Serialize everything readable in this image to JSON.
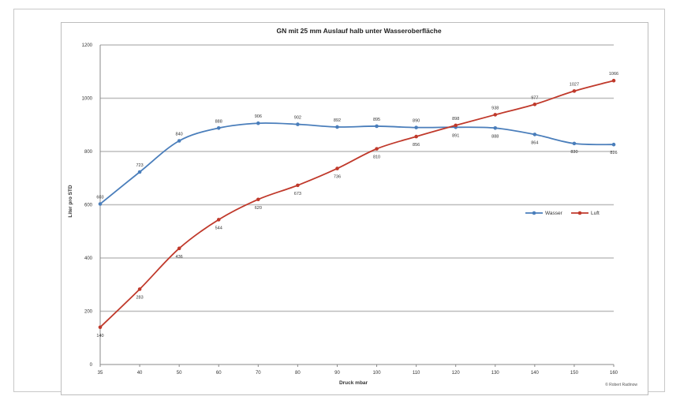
{
  "chart_data": {
    "type": "line",
    "title": "GN mit 25 mm Auslauf halb unter Wasseroberfläche",
    "xlabel": "Druck mbar",
    "ylabel": "Liter pro STD",
    "categories": [
      "35",
      "40",
      "50",
      "60",
      "70",
      "80",
      "90",
      "100",
      "110",
      "120",
      "130",
      "140",
      "150",
      "160"
    ],
    "ylim": [
      0,
      1200
    ],
    "yticks": [
      0,
      200,
      400,
      600,
      800,
      1000,
      1200
    ],
    "grid": true,
    "legend_position": "right",
    "series": [
      {
        "name": "Wasser",
        "color": "#4a7ebb",
        "values": [
          603,
          723,
          840,
          888,
          906,
          902,
          892,
          895,
          890,
          891,
          888,
          864,
          830,
          826
        ]
      },
      {
        "name": "Luft",
        "color": "#c0392b",
        "values": [
          140,
          283,
          436,
          544,
          620,
          673,
          736,
          810,
          856,
          898,
          938,
          977,
          1027,
          1066
        ]
      }
    ],
    "copyright": "© Robert Radinow"
  }
}
